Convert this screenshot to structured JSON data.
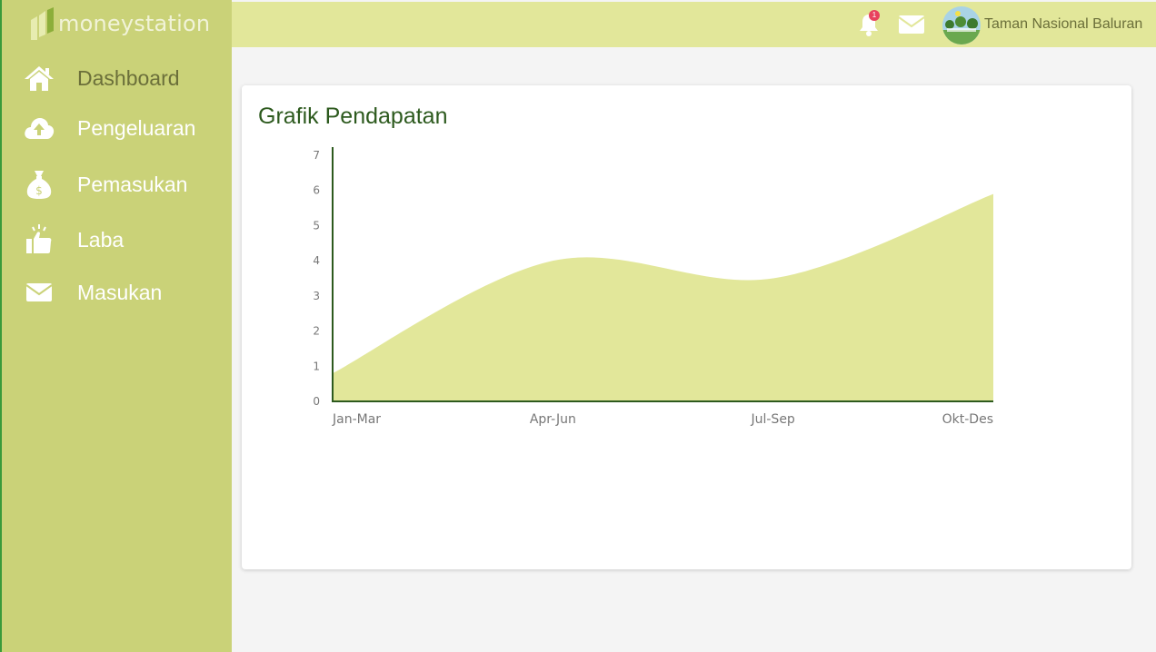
{
  "brand": {
    "name": "moneystation",
    "icon": "moneystation-logo"
  },
  "sidebar": {
    "items": [
      {
        "label": "Dashboard",
        "icon": "home-icon",
        "active": true
      },
      {
        "label": "Pengeluaran",
        "icon": "cloud-upload-icon"
      },
      {
        "label": "Pemasukan",
        "icon": "money-bag-icon"
      },
      {
        "label": "Laba",
        "icon": "thumbs-up-icon"
      },
      {
        "label": "Masukan",
        "icon": "envelope-icon"
      }
    ]
  },
  "topbar": {
    "notification_count": "1",
    "user_name": "Taman Nasional Baluran"
  },
  "colors": {
    "sidebar": "#cad278",
    "topbar": "#e2e79a",
    "chart_fill": "#e2e79a",
    "title": "#2d5a1e"
  },
  "main": {
    "card_title": "Grafik Pendapatan"
  },
  "chart_data": {
    "type": "area",
    "categories": [
      "Jan-Mar",
      "Apr-Jun",
      "Jul-Sep",
      "Okt-Des"
    ],
    "values": [
      0.8,
      4.0,
      3.5,
      5.9
    ],
    "ylim": [
      0,
      7
    ],
    "yticks": [
      0,
      1,
      2,
      3,
      4,
      5,
      6,
      7
    ],
    "grid": false,
    "legend": "none"
  }
}
